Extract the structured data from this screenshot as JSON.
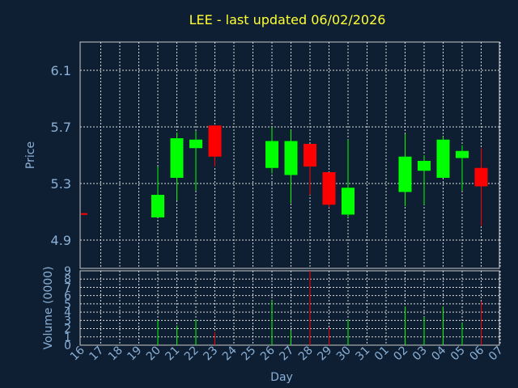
{
  "chart_data": [
    {
      "type": "candlestick",
      "title": "LEE - last updated 06/02/2026",
      "ylabel": "Price",
      "ylim": [
        4.7,
        6.3
      ],
      "yticks": [
        "6.1",
        "5.7",
        "5.3",
        "4.9"
      ],
      "colors": {
        "up": "#00ff00",
        "down": "#ff0000",
        "background": "#0f1f33",
        "axis_text": "#8ab0d6",
        "title": "#ffff33"
      },
      "candles": [
        {
          "day": "16",
          "open": 5.09,
          "high": 5.09,
          "low": 5.09,
          "close": 5.08
        },
        {
          "day": "20",
          "open": 5.06,
          "high": 5.42,
          "low": 5.06,
          "close": 5.22
        },
        {
          "day": "21",
          "open": 5.34,
          "high": 5.66,
          "low": 5.18,
          "close": 5.62
        },
        {
          "day": "22",
          "open": 5.55,
          "high": 5.67,
          "low": 5.25,
          "close": 5.61
        },
        {
          "day": "23",
          "open": 5.71,
          "high": 5.71,
          "low": 5.42,
          "close": 5.49
        },
        {
          "day": "26",
          "open": 5.41,
          "high": 5.7,
          "low": 5.37,
          "close": 5.6
        },
        {
          "day": "27",
          "open": 5.36,
          "high": 5.68,
          "low": 5.16,
          "close": 5.6
        },
        {
          "day": "28",
          "open": 5.58,
          "high": 5.58,
          "low": 5.22,
          "close": 5.42
        },
        {
          "day": "29",
          "open": 5.38,
          "high": 5.38,
          "low": 5.13,
          "close": 5.15
        },
        {
          "day": "30",
          "open": 5.08,
          "high": 5.61,
          "low": 5.06,
          "close": 5.27
        },
        {
          "day": "02",
          "open": 5.24,
          "high": 5.65,
          "low": 5.14,
          "close": 5.49
        },
        {
          "day": "03",
          "open": 5.39,
          "high": 5.5,
          "low": 5.15,
          "close": 5.46
        },
        {
          "day": "04",
          "open": 5.34,
          "high": 5.63,
          "low": 5.34,
          "close": 5.61
        },
        {
          "day": "05",
          "open": 5.48,
          "high": 5.57,
          "low": 5.25,
          "close": 5.53
        },
        {
          "day": "06",
          "open": 5.41,
          "high": 5.55,
          "low": 5.0,
          "close": 5.28
        }
      ]
    },
    {
      "type": "bar",
      "ylabel": "Volume (0000)",
      "xlabel": "Day",
      "ylim": [
        0,
        9
      ],
      "yticks": [
        "0",
        "1",
        "2",
        "3",
        "4",
        "5",
        "6",
        "7",
        "8",
        "9"
      ],
      "categories": [
        "16",
        "17",
        "18",
        "19",
        "20",
        "21",
        "22",
        "23",
        "24",
        "25",
        "26",
        "27",
        "28",
        "29",
        "30",
        "31",
        "01",
        "02",
        "03",
        "04",
        "05",
        "06",
        "07"
      ],
      "bars": [
        {
          "day": "20",
          "value": 3.0,
          "color": "#00ff00"
        },
        {
          "day": "21",
          "value": 2.4,
          "color": "#00ff00"
        },
        {
          "day": "22",
          "value": 3.1,
          "color": "#00ff00"
        },
        {
          "day": "23",
          "value": 1.6,
          "color": "#ff0000"
        },
        {
          "day": "26",
          "value": 5.4,
          "color": "#00ff00"
        },
        {
          "day": "27",
          "value": 1.8,
          "color": "#00ff00"
        },
        {
          "day": "28",
          "value": 9.0,
          "color": "#ff0000"
        },
        {
          "day": "29",
          "value": 2.1,
          "color": "#ff0000"
        },
        {
          "day": "30",
          "value": 3.1,
          "color": "#00ff00"
        },
        {
          "day": "02",
          "value": 4.7,
          "color": "#00ff00"
        },
        {
          "day": "03",
          "value": 3.4,
          "color": "#00ff00"
        },
        {
          "day": "04",
          "value": 4.7,
          "color": "#00ff00"
        },
        {
          "day": "05",
          "value": 2.7,
          "color": "#00ff00"
        },
        {
          "day": "06",
          "value": 5.3,
          "color": "#ff0000"
        }
      ]
    }
  ]
}
